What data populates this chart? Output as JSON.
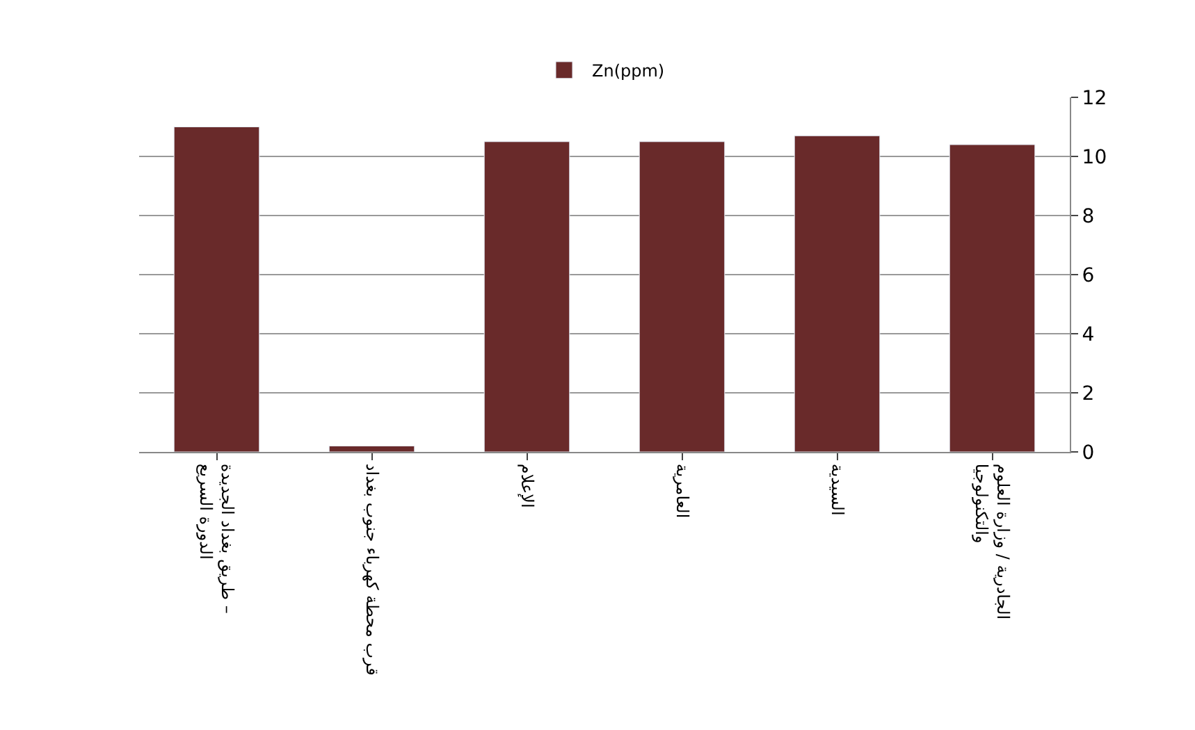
{
  "chart_data": {
    "type": "bar",
    "categories": [
      "طريق بغداد الجديدة – الدورة السريع",
      "قرب محطة كهرباء جنوب بغداد",
      "الإعلام",
      "العامرية",
      "السيدية",
      "الجادرية / وزارة العلوم والتكنولوجيا"
    ],
    "series": [
      {
        "name": "Zn(ppm)",
        "color": "#692a2a",
        "values": [
          11.0,
          0.2,
          10.5,
          10.5,
          10.7,
          10.4
        ]
      }
    ],
    "ylim": [
      0,
      12
    ],
    "yticks": [
      0,
      2,
      4,
      6,
      8,
      10,
      12
    ],
    "grid": "y",
    "legend": "top"
  }
}
